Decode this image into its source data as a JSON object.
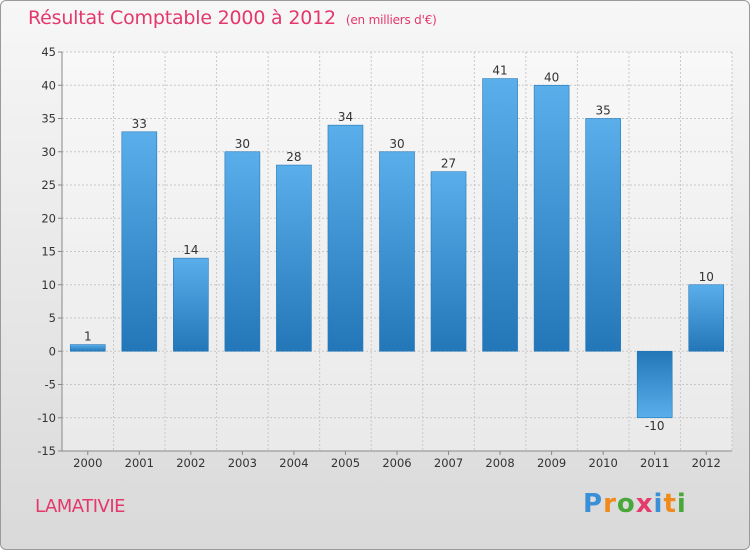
{
  "title": "Résultat Comptable 2000 à 2012",
  "subtitle": "(en milliers d'€)",
  "commune": "LAMATIVIE",
  "logo": {
    "text": "Proxiti",
    "letter_colors": [
      "#3a8fd6",
      "#f08a1c",
      "#4aa83a",
      "#e43a6c",
      "#3a8fd6",
      "#f08a1c",
      "#4aa83a"
    ]
  },
  "colors": {
    "title": "#e4386d",
    "bar_light": "#5aaeea",
    "bar_dark": "#2377b8",
    "grid": "#c8c8c8",
    "axis_text": "#333333"
  },
  "chart_data": {
    "type": "bar",
    "categories": [
      "2000",
      "2001",
      "2002",
      "2003",
      "2004",
      "2005",
      "2006",
      "2007",
      "2008",
      "2009",
      "2010",
      "2011",
      "2012"
    ],
    "values": [
      1,
      33,
      14,
      30,
      28,
      34,
      30,
      27,
      41,
      40,
      35,
      -10,
      10
    ],
    "data_labels": [
      "1",
      "33",
      "14",
      "30",
      "28",
      "34",
      "30",
      "27",
      "41",
      "40",
      "35",
      "-10",
      "10"
    ],
    "ylim": [
      -15,
      45
    ],
    "yticks": [
      -15,
      -10,
      -5,
      0,
      5,
      10,
      15,
      20,
      25,
      30,
      35,
      40,
      45
    ],
    "grid": true,
    "legend": "none"
  }
}
